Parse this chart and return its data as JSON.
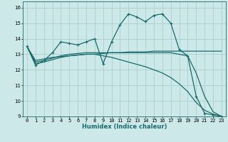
{
  "xlabel": "Humidex (Indice chaleur)",
  "background_color": "#cce8e8",
  "grid_color": "#aad0d0",
  "line_color": "#1a6b6b",
  "xlim": [
    -0.5,
    23.5
  ],
  "ylim": [
    9,
    16.4
  ],
  "xticks": [
    0,
    1,
    2,
    3,
    4,
    5,
    6,
    7,
    8,
    9,
    10,
    11,
    12,
    13,
    14,
    15,
    16,
    17,
    18,
    19,
    20,
    21,
    22,
    23
  ],
  "yticks": [
    9,
    10,
    11,
    12,
    13,
    14,
    15,
    16
  ],
  "curve1_x": [
    0,
    1,
    2,
    3,
    4,
    5,
    6,
    7,
    8,
    9,
    10,
    11,
    12,
    13,
    14,
    15,
    16,
    17,
    18,
    19,
    20,
    21,
    22,
    23
  ],
  "curve1_y": [
    13.5,
    12.3,
    12.6,
    13.1,
    13.8,
    13.7,
    13.6,
    13.8,
    14.0,
    12.4,
    13.8,
    14.9,
    15.6,
    15.4,
    15.1,
    15.5,
    15.6,
    15.0,
    13.3,
    12.9,
    10.3,
    9.2,
    9.1,
    9.0
  ],
  "curve2_x": [
    0,
    1,
    2,
    3,
    4,
    5,
    6,
    7,
    8,
    9,
    10,
    11,
    12,
    13,
    14,
    15,
    16,
    17,
    18,
    19,
    20,
    21,
    22,
    23
  ],
  "curve2_y": [
    13.5,
    12.6,
    12.7,
    12.8,
    12.85,
    12.9,
    12.95,
    13.0,
    13.0,
    13.05,
    13.1,
    13.1,
    13.15,
    13.15,
    13.15,
    13.2,
    13.2,
    13.2,
    13.2,
    13.2,
    13.2,
    13.2,
    13.2,
    13.2
  ],
  "curve3_x": [
    0,
    1,
    2,
    3,
    4,
    5,
    6,
    7,
    8,
    9,
    10,
    11,
    12,
    13,
    14,
    15,
    16,
    17,
    18,
    19,
    20,
    21,
    22,
    23
  ],
  "curve3_y": [
    13.5,
    12.5,
    12.6,
    12.75,
    12.9,
    13.0,
    13.05,
    13.1,
    13.1,
    13.1,
    13.1,
    13.1,
    13.1,
    13.1,
    13.1,
    13.1,
    13.1,
    13.1,
    13.0,
    12.9,
    11.8,
    10.3,
    9.3,
    9.0
  ],
  "curve4_x": [
    0,
    1,
    2,
    3,
    4,
    5,
    6,
    7,
    8,
    9,
    10,
    11,
    12,
    13,
    14,
    15,
    16,
    17,
    18,
    19,
    20,
    21,
    22,
    23
  ],
  "curve4_y": [
    13.5,
    12.4,
    12.5,
    12.65,
    12.8,
    12.9,
    12.95,
    13.0,
    13.0,
    12.9,
    12.8,
    12.65,
    12.5,
    12.35,
    12.2,
    12.0,
    11.8,
    11.5,
    11.1,
    10.6,
    9.9,
    9.4,
    9.15,
    9.0
  ],
  "xlabel_fontsize": 6,
  "tick_fontsize": 5,
  "linewidth": 0.9
}
